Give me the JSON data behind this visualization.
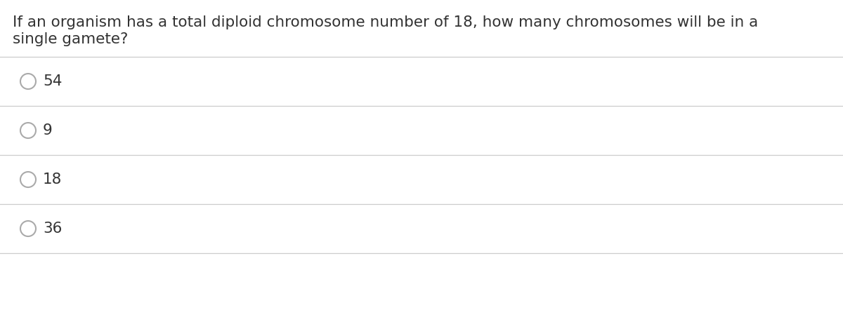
{
  "question_line1": "If an organism has a total diploid chromosome number of 18, how many chromosomes will be in a",
  "question_line2": "single gamete?",
  "options": [
    "54",
    "9",
    "18",
    "36"
  ],
  "background_color": "#ffffff",
  "text_color": "#333333",
  "line_color": "#cccccc",
  "circle_edge_color": "#aaaaaa",
  "font_size_question": 15.5,
  "font_size_options": 15.5,
  "fig_width": 12.0,
  "fig_height": 4.72,
  "dpi": 100
}
